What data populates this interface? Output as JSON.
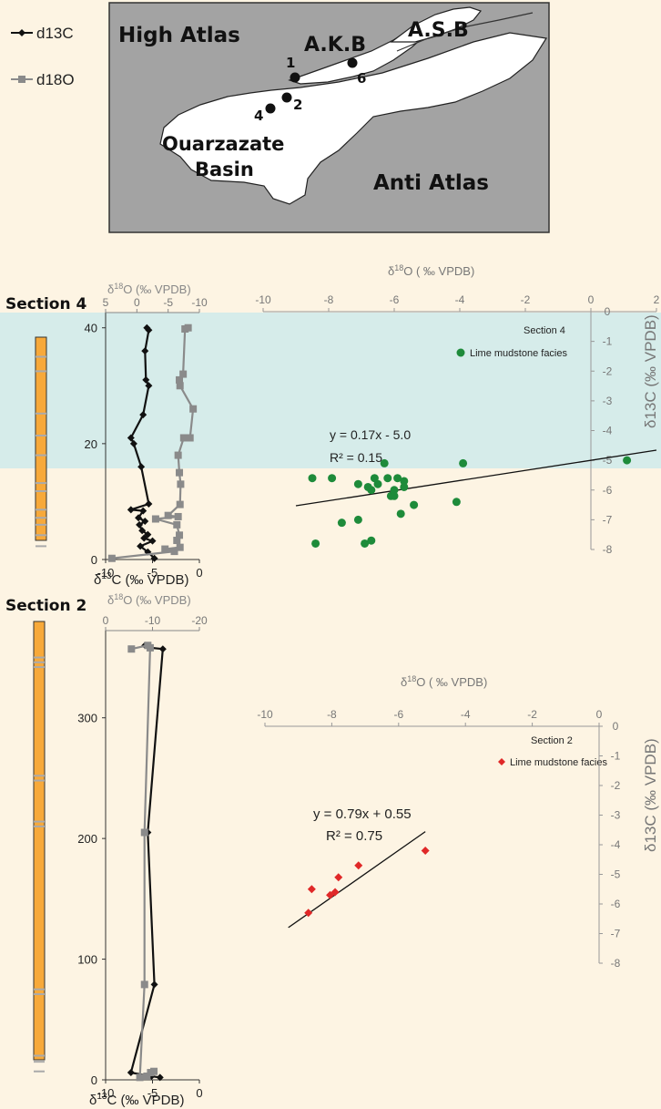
{
  "legend": {
    "items": [
      {
        "name": "d13C",
        "color": "#111111"
      },
      {
        "name": "d18O",
        "color": "#8a8a8a"
      }
    ]
  },
  "map": {
    "labels": {
      "high_atlas": "High Atlas",
      "akb": "A.K.B",
      "asb": "A.S.B",
      "basin_line1": "Ouarzazate",
      "basin_line2": "Basin",
      "anti_atlas": "Anti Atlas"
    },
    "sites": [
      "1",
      "2",
      "4",
      "6"
    ]
  },
  "colors": {
    "background": "#fdf4e3",
    "shading_band": "#d6ecea",
    "column_orange": "#f7a93a",
    "column_cyan": "#b6e2ea",
    "d13C": "#111111",
    "d18O": "#8a8a8a",
    "section4_points": "#1e8b3a",
    "section2_points": "#e02828"
  },
  "chart_data": [
    {
      "id": "section4_profile",
      "type": "line",
      "title": "Section 4",
      "ylabel": "",
      "ylim": [
        0,
        42
      ],
      "yticks": [
        0,
        20,
        40
      ],
      "x_bottom": {
        "label_prefix": "δ",
        "label_sup": "13",
        "label_rest": "C (‰ VPDB)",
        "range": [
          -10,
          0
        ],
        "ticks": [
          -10,
          -5,
          0
        ]
      },
      "x_top": {
        "label_prefix": "δ",
        "label_sup": "18",
        "label_rest": "O (‰ VPDB)",
        "range": [
          5,
          -10
        ],
        "ticks": [
          "5",
          "0",
          "-5",
          "-10"
        ]
      },
      "series": [
        {
          "name": "d13C",
          "axis": "bottom",
          "points": [
            [
              -5.6,
              40
            ],
            [
              -5.4,
              39.6
            ],
            [
              -5.8,
              36
            ],
            [
              -5.7,
              31
            ],
            [
              -5.4,
              30
            ],
            [
              -6.0,
              25
            ],
            [
              -7.3,
              21
            ],
            [
              -7.0,
              20
            ],
            [
              -6.2,
              16
            ],
            [
              -5.4,
              9.6
            ],
            [
              -7.3,
              8.6
            ],
            [
              -6.0,
              8.4
            ],
            [
              -6.5,
              7.2
            ],
            [
              -5.8,
              6.6
            ],
            [
              -6.4,
              6.0
            ],
            [
              -6.1,
              5.0
            ],
            [
              -5.5,
              4.3
            ],
            [
              -5.9,
              3.7
            ],
            [
              -5.0,
              3.2
            ],
            [
              -6.3,
              2.3
            ],
            [
              -5.5,
              1.3
            ],
            [
              -4.8,
              0.2
            ]
          ]
        },
        {
          "name": "d18O",
          "axis": "top",
          "points": [
            [
              -8.2,
              40
            ],
            [
              -7.7,
              39.8
            ],
            [
              -7.4,
              32
            ],
            [
              -6.8,
              31
            ],
            [
              -6.9,
              30
            ],
            [
              -9.0,
              26
            ],
            [
              -8.5,
              21
            ],
            [
              -7.5,
              21
            ],
            [
              -6.6,
              18
            ],
            [
              -6.8,
              15
            ],
            [
              -7.0,
              13
            ],
            [
              -6.9,
              9.5
            ],
            [
              -5.0,
              7.6
            ],
            [
              -6.6,
              7.4
            ],
            [
              -3.0,
              7.0
            ],
            [
              -6.4,
              6.0
            ],
            [
              -6.8,
              4.2
            ],
            [
              -6.4,
              3.3
            ],
            [
              -6.9,
              2.1
            ],
            [
              -4.5,
              1.8
            ],
            [
              -6.0,
              1.4
            ],
            [
              4.0,
              0.2
            ]
          ]
        }
      ],
      "column_stripes": [
        11.8,
        13.2,
        18.0,
        21.4,
        25.2,
        32.5,
        35.0,
        8.6,
        7.2,
        6.0,
        4.2,
        2.3
      ]
    },
    {
      "id": "section4_crossplot",
      "type": "scatter",
      "title": "Section 4",
      "xlabel_prefix": "δ",
      "xlabel_sup": "18",
      "xlabel_rest": "O ( ‰ VPDB)",
      "ylabel": "δ13C (‰ VPDB)",
      "xlim": [
        -10,
        2
      ],
      "ylim": [
        -8,
        0
      ],
      "xticks": [
        -10,
        -8,
        -6,
        -4,
        -2,
        0,
        2
      ],
      "yticks": [
        0,
        -1,
        -2,
        -3,
        -4,
        -5,
        -6,
        -7,
        -8
      ],
      "series": [
        {
          "name": "Lime mudstone facies",
          "points": [
            [
              -8.5,
              -5.6
            ],
            [
              -7.9,
              -5.6
            ],
            [
              -8.4,
              -7.8
            ],
            [
              -7.6,
              -7.1
            ],
            [
              -7.1,
              -7.0
            ],
            [
              -6.9,
              -7.8
            ],
            [
              -6.7,
              -7.7
            ],
            [
              -7.1,
              -5.8
            ],
            [
              -6.8,
              -5.9
            ],
            [
              -6.7,
              -6.0
            ],
            [
              -6.6,
              -5.6
            ],
            [
              -6.5,
              -5.8
            ],
            [
              -6.3,
              -5.1
            ],
            [
              -6.2,
              -5.6
            ],
            [
              -6.1,
              -6.2
            ],
            [
              -6.0,
              -6.2
            ],
            [
              -6.0,
              -6.0
            ],
            [
              -5.9,
              -5.6
            ],
            [
              -5.8,
              -6.8
            ],
            [
              -5.7,
              -5.7
            ],
            [
              -5.7,
              -5.9
            ],
            [
              -5.4,
              -6.5
            ],
            [
              -4.1,
              -6.4
            ],
            [
              -3.9,
              -5.1
            ],
            [
              1.1,
              -5.0
            ]
          ]
        }
      ],
      "trendline": {
        "slope": 0.17,
        "intercept": -5.0,
        "x_range": [
          -9,
          2
        ],
        "equation": "y = 0.17x - 5.0",
        "r2": "R² = 0.15"
      }
    },
    {
      "id": "section2_profile",
      "type": "line",
      "title": "Section 2",
      "ylabel": "",
      "ylim": [
        0,
        370
      ],
      "yticks": [
        0,
        100,
        200,
        300
      ],
      "x_bottom": {
        "label_prefix": "δ",
        "label_sup": "13",
        "label_rest": "C (‰ VPDB)",
        "range": [
          -10,
          0
        ],
        "ticks": [
          -10,
          -5,
          0
        ]
      },
      "x_top": {
        "label_prefix": "δ",
        "label_sup": "18",
        "label_rest": "O (‰ VPDB)",
        "range": [
          0,
          -20
        ],
        "ticks": [
          "0",
          "-10",
          "-20"
        ]
      },
      "series": [
        {
          "name": "d13C",
          "axis": "bottom",
          "points": [
            [
              -5.8,
              360
            ],
            [
              -5.2,
              358
            ],
            [
              -3.9,
              357
            ],
            [
              -5.5,
              205
            ],
            [
              -4.8,
              79
            ],
            [
              -7.3,
              6
            ],
            [
              -5.1,
              3
            ],
            [
              -4.2,
              2
            ]
          ]
        },
        {
          "name": "d18O",
          "axis": "top",
          "points": [
            [
              -5.5,
              357
            ],
            [
              -9.0,
              360
            ],
            [
              -9.5,
              358
            ],
            [
              -8.3,
              205
            ],
            [
              -8.3,
              79
            ],
            [
              -7.3,
              2
            ],
            [
              -8.8,
              3
            ],
            [
              -9.6,
              6
            ],
            [
              -10.3,
              7
            ]
          ]
        }
      ],
      "column_stripes": [
        350,
        346,
        342,
        252,
        248,
        214,
        210,
        75,
        71,
        20,
        15,
        7
      ]
    },
    {
      "id": "section2_crossplot",
      "type": "scatter",
      "title": "Section 2",
      "xlabel_prefix": "δ",
      "xlabel_sup": "18",
      "xlabel_rest": "O ( ‰ VPDB)",
      "ylabel": "δ13C (‰ VPDB)",
      "xlim": [
        -10,
        0
      ],
      "ylim": [
        -8,
        0
      ],
      "xticks": [
        -10,
        -8,
        -6,
        -4,
        -2,
        0
      ],
      "yticks": [
        0,
        -1,
        -2,
        -3,
        -4,
        -5,
        -6,
        -7,
        -8
      ],
      "series": [
        {
          "name": "Lime mudstone facies",
          "points": [
            [
              -8.7,
              -6.3
            ],
            [
              -8.6,
              -5.5
            ],
            [
              -7.9,
              -5.6
            ],
            [
              -7.8,
              -5.1
            ],
            [
              -8.05,
              -5.7
            ],
            [
              -7.2,
              -4.7
            ],
            [
              -5.2,
              -4.2
            ]
          ]
        }
      ],
      "trendline": {
        "slope": 0.79,
        "intercept": 0.55,
        "x_range": [
          -9.3,
          -5.2
        ],
        "equation": "y = 0.79x + 0.55",
        "r2": "R² = 0.75"
      }
    }
  ]
}
